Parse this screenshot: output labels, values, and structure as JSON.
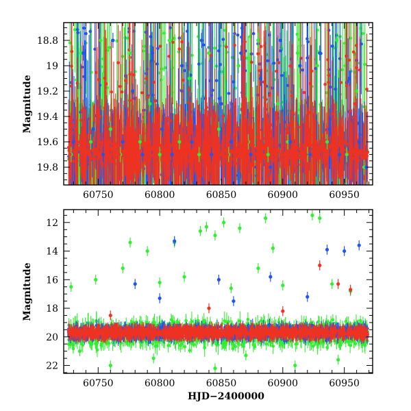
{
  "chart_data": [
    {
      "type": "scatter",
      "panel": "top",
      "title": "",
      "xlabel": "",
      "ylabel": "Magnitude",
      "xlim": [
        60722,
        60973
      ],
      "ylim": [
        18.66,
        19.94
      ],
      "y_inverted": true,
      "xticks": [
        60750,
        60800,
        60850,
        60900,
        60950
      ],
      "xtick_labels": [
        "60750",
        "60800",
        "60850",
        "60900",
        "60950"
      ],
      "yticks": [
        18.8,
        19,
        19.2,
        19.4,
        19.6,
        19.8
      ],
      "ytick_labels": [
        "18.8",
        "19",
        "19.2",
        "19.4",
        "19.6",
        "19.8"
      ],
      "series": [
        {
          "name": "green",
          "color": "#33ee33",
          "x": [
            60728,
            60736,
            60744,
            60752,
            60760,
            60768,
            60776,
            60784,
            60792,
            60800,
            60808,
            60816,
            60824,
            60832,
            60840,
            60848,
            60856,
            60864,
            60872,
            60880,
            60888,
            60896,
            60904,
            60912,
            60920,
            60928,
            60936,
            60944,
            60952,
            60960,
            60966
          ],
          "y": [
            19.7,
            18.9,
            19.6,
            18.8,
            19.5,
            19.7,
            18.9,
            19.6,
            19.3,
            19.7,
            18.8,
            19.6,
            19.1,
            19.7,
            18.9,
            19.5,
            19.7,
            19.0,
            19.6,
            18.8,
            19.7,
            19.3,
            19.6,
            18.9,
            19.7,
            19.0,
            19.6,
            18.8,
            19.7,
            19.2,
            19.8
          ]
        },
        {
          "name": "blue",
          "color": "#2255ee",
          "x": [
            60730,
            60738,
            60746,
            60754,
            60762,
            60770,
            60778,
            60786,
            60794,
            60802,
            60810,
            60818,
            60826,
            60834,
            60842,
            60850,
            60858,
            60866,
            60874,
            60882,
            60890,
            60898,
            60906,
            60914,
            60922,
            60930,
            60938,
            60946,
            60954,
            60962,
            60968
          ],
          "y": [
            19.6,
            18.9,
            19.5,
            19.7,
            18.8,
            19.6,
            19.2,
            19.7,
            18.9,
            19.5,
            19.7,
            19.0,
            19.6,
            18.8,
            19.7,
            19.3,
            19.6,
            18.9,
            19.7,
            19.1,
            19.8,
            18.8,
            19.6,
            19.0,
            19.7,
            18.9,
            19.5,
            19.7,
            19.1,
            19.6,
            19.8
          ]
        },
        {
          "name": "red",
          "color": "#ee3322",
          "x": [
            60727,
            60735,
            60743,
            60751,
            60759,
            60767,
            60775,
            60783,
            60791,
            60799,
            60807,
            60815,
            60823,
            60831,
            60839,
            60847,
            60855,
            60863,
            60871,
            60879,
            60887,
            60895,
            60903,
            60911,
            60919,
            60927,
            60935,
            60943,
            60951,
            60959,
            60967
          ],
          "y": [
            19.7,
            19.6,
            19.7,
            19.4,
            19.6,
            19.7,
            19.5,
            19.7,
            19.6,
            19.4,
            19.6,
            19.7,
            19.5,
            19.6,
            19.7,
            19.6,
            19.7,
            19.5,
            19.6,
            19.7,
            19.6,
            19.7,
            19.5,
            19.6,
            19.7,
            19.6,
            19.7,
            19.5,
            19.6,
            19.3,
            19.7
          ]
        }
      ]
    },
    {
      "type": "scatter",
      "panel": "bottom",
      "title": "",
      "xlabel": "HJD−2400000",
      "ylabel": "Magnitude",
      "xlim": [
        60722,
        60973
      ],
      "ylim": [
        11.1,
        22.55
      ],
      "y_inverted": true,
      "xticks": [
        60750,
        60800,
        60850,
        60900,
        60950
      ],
      "xtick_labels": [
        "60750",
        "60800",
        "60850",
        "60900",
        "60950"
      ],
      "yticks": [
        12,
        14,
        16,
        18,
        20,
        22
      ],
      "ytick_labels": [
        "12",
        "14",
        "16",
        "18",
        "20",
        "22"
      ],
      "series": [
        {
          "name": "green",
          "color": "#33ee33",
          "x": [
            60728,
            60776,
            60790,
            60812,
            60833,
            60838,
            60845,
            60852,
            60865,
            60880,
            60886,
            60892,
            60924,
            60930,
            60748,
            60770,
            60800,
            60820,
            60858,
            60900,
            60940,
            60955,
            60735,
            60760,
            60795,
            60845,
            60870,
            60910,
            60945
          ],
          "y": [
            16.5,
            13.4,
            14.0,
            13.4,
            12.6,
            12.3,
            12.9,
            12.0,
            12.4,
            15.2,
            11.7,
            13.8,
            11.5,
            11.7,
            16.0,
            15.2,
            16.2,
            15.8,
            16.6,
            16.4,
            16.3,
            16.8,
            21.0,
            22.0,
            21.5,
            22.2,
            21.3,
            22.0,
            21.6
          ]
        },
        {
          "name": "blue",
          "color": "#2255ee",
          "x": [
            60780,
            60812,
            60848,
            60890,
            60936,
            60950,
            60962,
            60800,
            60860,
            60920
          ],
          "y": [
            16.3,
            13.3,
            16.0,
            15.8,
            13.9,
            14.0,
            13.6,
            17.3,
            17.5,
            17.2
          ]
        },
        {
          "name": "red",
          "color": "#ee3322",
          "x": [
            60930,
            60945,
            60955,
            60900,
            60760,
            60840
          ],
          "y": [
            15.0,
            16.3,
            16.7,
            18.2,
            18.5,
            18.0
          ]
        }
      ]
    }
  ]
}
